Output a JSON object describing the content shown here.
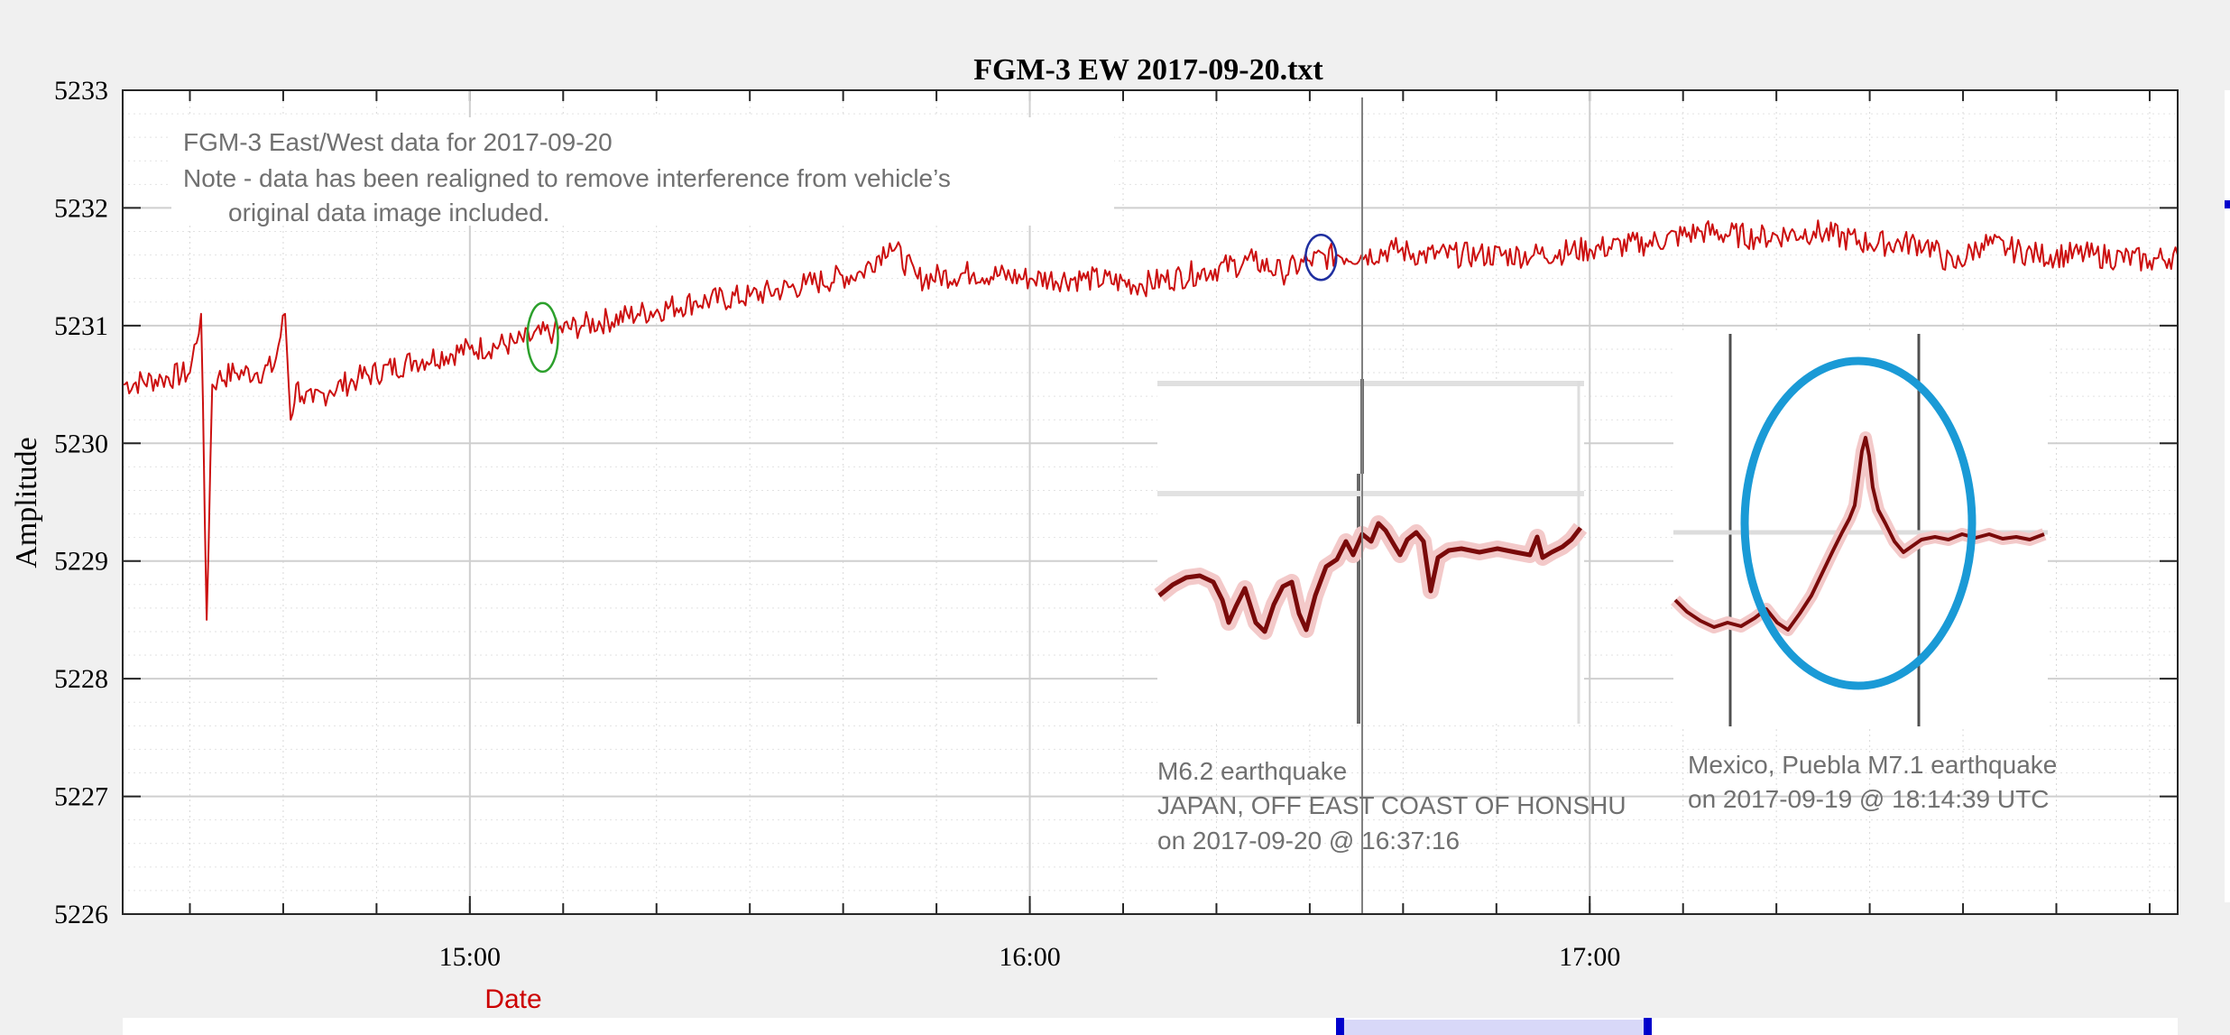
{
  "colors": {
    "background": "#f0f0f0",
    "plot_background": "#ffffff",
    "series": "#cc1010",
    "green_marker": "#2ca02c",
    "blue_marker": "#1f2fa0",
    "highlight_ellipse": "#1a9ad6",
    "annotation_text": "#707070",
    "date_label": "#cc0000",
    "range_selector": "#d8d8f8"
  },
  "notes": {
    "line1": "FGM-3 East/West data for 2017-09-20",
    "line2": "Note - data has been realigned to remove interference from vehicle’s",
    "line3": "original data image included."
  },
  "annotations": {
    "japan": {
      "line1": "M6.2 earthquake",
      "line2": "JAPAN, OFF EAST COAST OF HONSHU",
      "line3": "on 2017-09-20 @ 16:37:16"
    },
    "mexico": {
      "line1": "Mexico, Puebla M7.1 earthquake",
      "line2": "on 2017-09-19 @ 18:14:39 UTC"
    }
  },
  "date_label": "Date",
  "chart_data": {
    "type": "line",
    "title": "FGM-3 EW 2017-09-20.txt",
    "xlabel": "",
    "ylabel": "Amplitude",
    "x_unit": "hours of day",
    "xlim": [
      14.38,
      18.05
    ],
    "ylim": [
      5226,
      5233
    ],
    "x_tick_values": [
      15,
      16,
      17
    ],
    "x_tick_labels": [
      "15:00",
      "16:00",
      "17:00"
    ],
    "y_ticks": [
      5226,
      5227,
      5228,
      5229,
      5230,
      5231,
      5232,
      5233
    ],
    "grid": true,
    "series": [
      {
        "x": [
          14.38,
          14.45,
          14.5,
          14.52,
          14.53,
          14.54,
          14.55,
          14.58,
          14.62,
          14.65,
          14.67,
          14.68,
          14.69,
          14.7,
          14.72,
          14.75,
          14.8,
          14.9,
          15.0,
          15.08,
          15.15,
          15.2,
          15.3,
          15.4,
          15.5,
          15.6,
          15.7,
          15.75,
          15.8,
          15.9,
          16.0,
          16.1,
          16.2,
          16.3,
          16.4,
          16.45,
          16.5,
          16.55,
          16.6,
          16.65,
          16.7,
          16.8,
          16.9,
          17.0,
          17.1,
          17.2,
          17.3,
          17.4,
          17.5,
          17.6,
          17.65,
          17.7,
          17.75,
          17.8,
          17.9,
          18.0,
          18.05
        ],
        "y": [
          5230.5,
          5230.55,
          5230.6,
          5231.1,
          5228.5,
          5230.5,
          5230.55,
          5230.6,
          5230.6,
          5230.65,
          5231.1,
          5230.2,
          5230.5,
          5230.4,
          5230.35,
          5230.45,
          5230.55,
          5230.7,
          5230.8,
          5230.85,
          5230.95,
          5231.0,
          5231.1,
          5231.2,
          5231.25,
          5231.35,
          5231.45,
          5231.7,
          5231.4,
          5231.45,
          5231.4,
          5231.4,
          5231.35,
          5231.45,
          5231.55,
          5231.45,
          5231.55,
          5231.6,
          5231.6,
          5231.65,
          5231.6,
          5231.6,
          5231.6,
          5231.65,
          5231.7,
          5231.8,
          5231.75,
          5231.8,
          5231.7,
          5231.7,
          5231.5,
          5231.7,
          5231.65,
          5231.6,
          5231.6,
          5231.55,
          5231.6
        ]
      }
    ],
    "event_markers": [
      {
        "x": 15.13,
        "y": 5230.9
      },
      {
        "x": 16.52,
        "y": 5231.58
      }
    ]
  }
}
